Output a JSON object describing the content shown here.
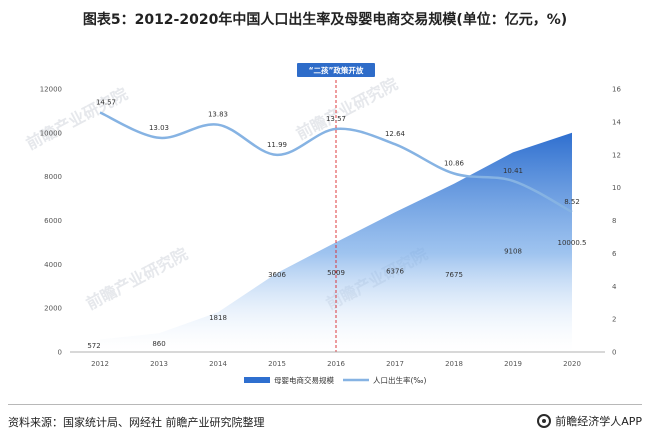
{
  "title": "图表5：2012-2020年中国人口出生率及母婴电商交易规模(单位：亿元，%)",
  "policy_label": "“二孩”政策开放",
  "watermark": "前瞻产业研究院",
  "source": "资料来源：国家统计局、网经社 前瞻产业研究院整理",
  "brand": "前瞻经济学人APP",
  "chart_data": {
    "type": "area+line",
    "categories": [
      "2012",
      "2013",
      "2014",
      "2015",
      "2016",
      "2017",
      "2018",
      "2019",
      "2020"
    ],
    "series": [
      {
        "name": "母婴电商交易规模",
        "axis": "left",
        "kind": "area",
        "values": [
          572,
          860,
          1818,
          3606,
          5009,
          6376,
          7675,
          9108,
          10000.5
        ],
        "labels": [
          "572",
          "860",
          "1818",
          "3606",
          "5009",
          "6376",
          "7675",
          "9108",
          "10000.5"
        ]
      },
      {
        "name": "人口出生率(‰)",
        "axis": "right",
        "kind": "line",
        "values": [
          14.57,
          13.03,
          13.83,
          11.99,
          13.57,
          12.64,
          10.86,
          10.41,
          8.52
        ],
        "labels": [
          "14.57",
          "13.03",
          "13.83",
          "11.99",
          "13.57",
          "12.64",
          "10.86",
          "10.41",
          "8.52"
        ]
      }
    ],
    "y_left": {
      "range": [
        0,
        12000
      ],
      "ticks": [
        "0",
        "2000",
        "4000",
        "6000",
        "8000",
        "10000",
        "12000"
      ]
    },
    "y_right": {
      "range": [
        0,
        16
      ],
      "ticks": [
        "0",
        "2",
        "4",
        "6",
        "8",
        "10",
        "12",
        "14",
        "16"
      ]
    },
    "marker_category": "2016",
    "colors": {
      "area_top": "#2f6fcf",
      "area_bottom": "#ffffff",
      "line": "#86b3e3",
      "marker": "#d9262b"
    },
    "legend_position": "bottom-center"
  }
}
